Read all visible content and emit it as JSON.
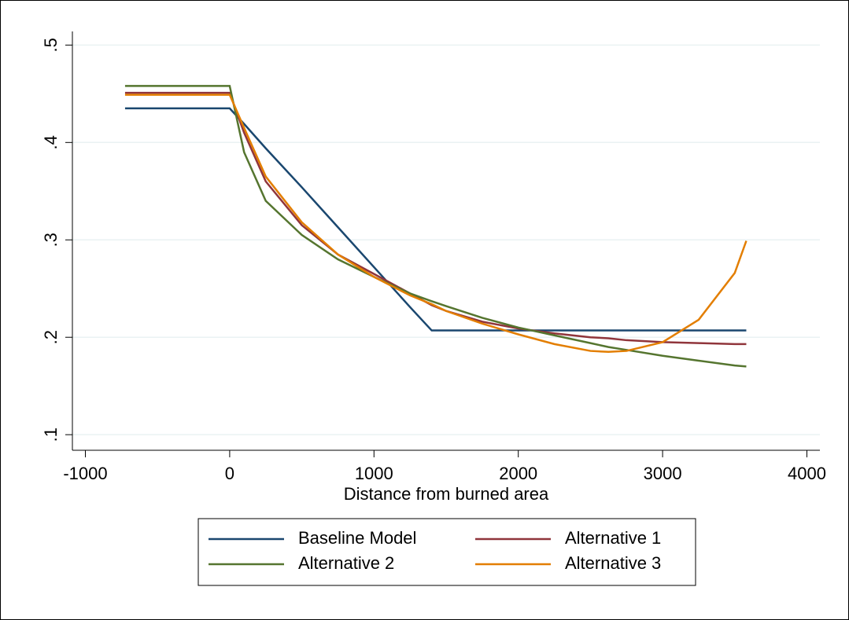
{
  "chart_data": {
    "type": "line",
    "x_label": "Distance from burned area",
    "x": [
      -725,
      0,
      100,
      250,
      500,
      750,
      1000,
      1250,
      1400,
      1500,
      1750,
      2000,
      2250,
      2500,
      2625,
      2750,
      3000,
      3250,
      3500,
      3580
    ],
    "series": [
      {
        "name": "Baseline Model",
        "color": "#1a476f",
        "values": [
          0.435,
          0.435,
          0.419,
          0.394,
          0.354,
          0.313,
          0.272,
          0.231,
          0.207,
          0.207,
          0.207,
          0.207,
          0.207,
          0.207,
          0.207,
          0.207,
          0.207,
          0.207,
          0.207,
          0.207
        ]
      },
      {
        "name": "Alternative 1",
        "color": "#90353b",
        "values": [
          0.451,
          0.451,
          0.41,
          0.36,
          0.315,
          0.285,
          0.265,
          0.245,
          0.233,
          0.227,
          0.216,
          0.209,
          0.204,
          0.2,
          0.199,
          0.197,
          0.195,
          0.194,
          0.193,
          0.193
        ]
      },
      {
        "name": "Alternative 2",
        "color": "#55752f",
        "values": [
          0.458,
          0.458,
          0.39,
          0.34,
          0.305,
          0.28,
          0.262,
          0.245,
          0.237,
          0.232,
          0.22,
          0.21,
          0.202,
          0.194,
          0.19,
          0.187,
          0.181,
          0.176,
          0.171,
          0.17
        ]
      },
      {
        "name": "Alternative 3",
        "color": "#e37e00",
        "values": [
          0.449,
          0.449,
          0.415,
          0.365,
          0.318,
          0.285,
          0.262,
          0.243,
          0.234,
          0.227,
          0.214,
          0.203,
          0.193,
          0.186,
          0.185,
          0.186,
          0.195,
          0.218,
          0.266,
          0.299
        ]
      }
    ],
    "xlim": [
      -1090,
      4090
    ],
    "xticks": [
      -1000,
      0,
      1000,
      2000,
      3000,
      4000
    ],
    "ylim": [
      0.084,
      0.514
    ],
    "yticks": [
      {
        "value": 0.1,
        "label": ".1"
      },
      {
        "value": 0.2,
        "label": ".2"
      },
      {
        "value": 0.3,
        "label": ".3"
      },
      {
        "value": 0.4,
        "label": ".4"
      },
      {
        "value": 0.5,
        "label": ".5"
      }
    ],
    "grid": true,
    "grid_color": "#eaf2f3",
    "legend": "bottom"
  }
}
